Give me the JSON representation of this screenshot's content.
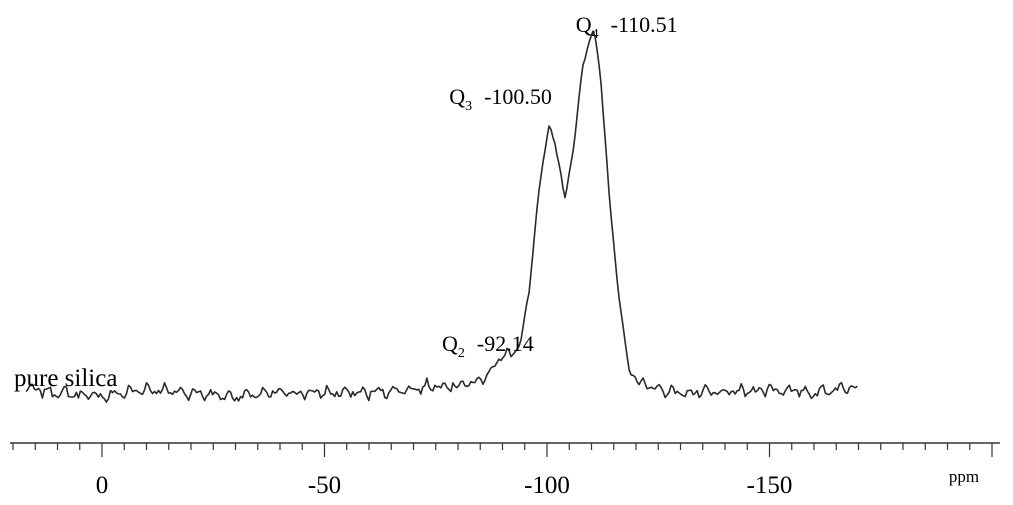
{
  "chart_data": {
    "type": "line",
    "title": "",
    "xlabel": "",
    "ylabel": "",
    "x_unit": "ppm",
    "xlim": [
      20,
      -170
    ],
    "x_reversed": true,
    "y_axis_shown": false,
    "grid": false,
    "xticks": [
      {
        "value": 0,
        "label": "0"
      },
      {
        "value": -50,
        "label": "-50"
      },
      {
        "value": -100,
        "label": "-100"
      },
      {
        "value": -150,
        "label": "-150"
      }
    ],
    "series": [
      {
        "name": "pure silica",
        "x": [
          17,
          10,
          0,
          -10,
          -20,
          -30,
          -40,
          -50,
          -60,
          -70,
          -75,
          -80,
          -85,
          -88,
          -90,
          -92.14,
          -94,
          -96,
          -98,
          -100.5,
          -102,
          -104,
          -106,
          -108,
          -110.51,
          -112,
          -114,
          -116,
          -118,
          -120,
          -125,
          -130,
          -140,
          -150,
          -160,
          -170
        ],
        "y": [
          0.04,
          0.03,
          0.02,
          0.04,
          0.03,
          0.02,
          0.03,
          0.03,
          0.03,
          0.04,
          0.05,
          0.05,
          0.06,
          0.1,
          0.13,
          0.13,
          0.16,
          0.3,
          0.55,
          0.75,
          0.68,
          0.55,
          0.68,
          0.9,
          1.0,
          0.88,
          0.55,
          0.3,
          0.12,
          0.06,
          0.04,
          0.03,
          0.03,
          0.04,
          0.03,
          0.05
        ]
      }
    ],
    "annotations": [
      {
        "label": "Q",
        "subscript": "2",
        "value": "-92.14",
        "x": -92.14,
        "y": 0.13
      },
      {
        "label": "Q",
        "subscript": "3",
        "value": "-100.50",
        "x": -100.5,
        "y": 0.75
      },
      {
        "label": "Q",
        "subscript": "4",
        "value": "-110.51",
        "x": -110.51,
        "y": 1.0
      }
    ],
    "series_label": "pure silica"
  }
}
